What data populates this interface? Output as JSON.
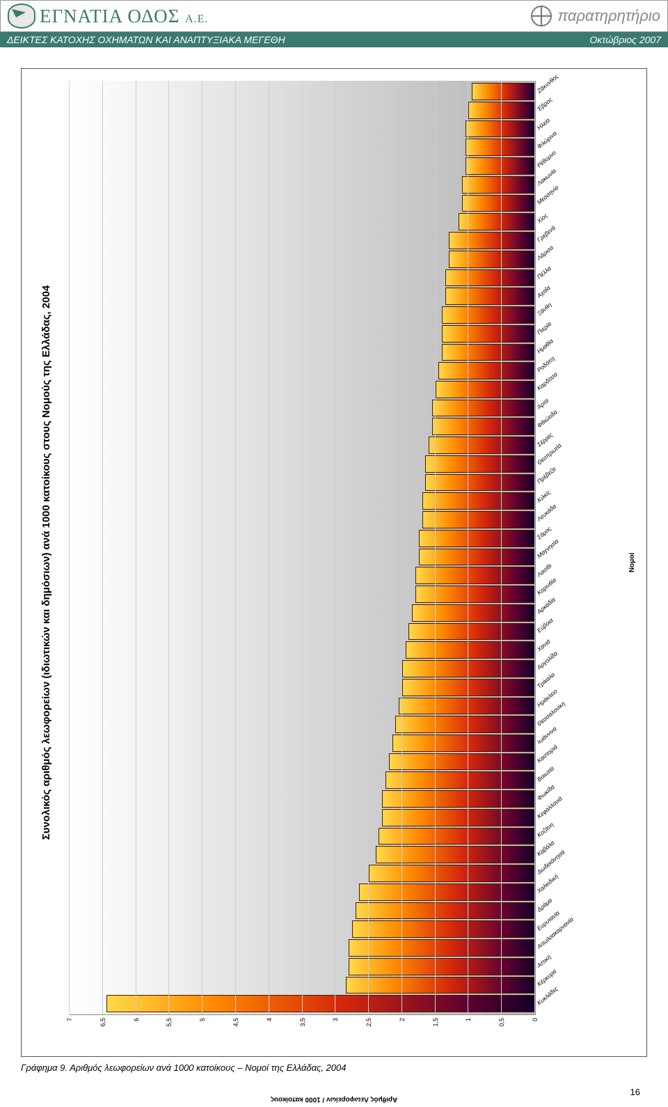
{
  "header": {
    "brand": "ΕΓΝΑΤΙΑ ΟΔΟΣ",
    "brand_suffix": "Α.Ε.",
    "right_label": "παρατηρητήριο"
  },
  "subheader": {
    "left": "ΔΕΙΚΤΕΣ ΚΑΤΟΧΗΣ ΟΧΗΜΑΤΩΝ ΚΑΙ ΑΝΑΠΤΥΞΙΑΚΑ ΜΕΓΕΘΗ",
    "right": "Οκτώβριος 2007"
  },
  "chart": {
    "type": "bar",
    "title": "Συνολικός αριθμός λεωφορείων (ιδιωτικών και δημόσιων) ανά 1000 κατοίκους στους Νομούς της Ελλάδας, 2004",
    "y_axis_label": "Αριθμός Λεωφορείων / 1000 κατοίκους",
    "x_axis_label": "Νομοί",
    "ylim": [
      0,
      7
    ],
    "ytick_step": 0.5,
    "yticks": [
      "0",
      "0,5",
      "1",
      "1,5",
      "2",
      "2,5",
      "3",
      "3,5",
      "4",
      "4,5",
      "5",
      "5,5",
      "6",
      "6,5",
      "7"
    ],
    "bar_gradient": [
      "#ffd949",
      "#ff8a00",
      "#d5280b",
      "#5b0030",
      "#110028"
    ],
    "plot_bg_gradient": [
      "#ffffff",
      "#b5b5b5"
    ],
    "gridline_color": "#cccccc",
    "title_fontsize": 15,
    "label_fontsize": 9,
    "categories": [
      "Κυκλάδες",
      "Κέρκυρα",
      "Αττική",
      "Αιτωλοακαρνανία",
      "Ευρυτανία",
      "Δράμα",
      "Χαλκιδική",
      "Δωδεκάνησα",
      "Καβάλα",
      "Κοζάνη",
      "Κεφαλλονιά",
      "Φωκίδα",
      "Βοιωτία",
      "Καστοριά",
      "Ιωάννινα",
      "Θεσσαλονίκη",
      "Ηράκλειο",
      "Τρίκαλα",
      "Αργολίδα",
      "Χανιά",
      "Εύβοια",
      "Αρκαδία",
      "Κορινθία",
      "Λασίθι",
      "Μαγνησία",
      "Σάμος",
      "Λευκάδα",
      "Κιλκίς",
      "Πρέβεζα",
      "Θεσπρωτία",
      "Σέρρες",
      "Φθιώτιδα",
      "Άρτα",
      "Καρδίτσα",
      "Ροδόπη",
      "Ημαθία",
      "Πιερία",
      "Ξάνθη",
      "Αχαΐα",
      "Πέλλα",
      "Λάρισα",
      "Γρεβενά",
      "Χίος",
      "Μεσσηνία",
      "Λακωνία",
      "Ρέθυμνο",
      "Φλώρινα",
      "Ηλεία",
      "Έβρος",
      "Ζάκυνθος"
    ],
    "values": [
      6.45,
      2.85,
      2.8,
      2.8,
      2.75,
      2.7,
      2.65,
      2.5,
      2.4,
      2.35,
      2.3,
      2.3,
      2.25,
      2.2,
      2.15,
      2.1,
      2.05,
      2.0,
      2.0,
      1.95,
      1.9,
      1.85,
      1.8,
      1.8,
      1.75,
      1.75,
      1.7,
      1.7,
      1.65,
      1.65,
      1.6,
      1.55,
      1.55,
      1.5,
      1.45,
      1.4,
      1.4,
      1.4,
      1.35,
      1.35,
      1.3,
      1.3,
      1.15,
      1.1,
      1.1,
      1.05,
      1.05,
      1.05,
      1.0,
      0.95
    ]
  },
  "caption": "Γράφημα 9. Αριθμός λεωφορείων ανά 1000 κατοίκους – Νομοί της Ελλάδας, 2004",
  "page_number": "16"
}
